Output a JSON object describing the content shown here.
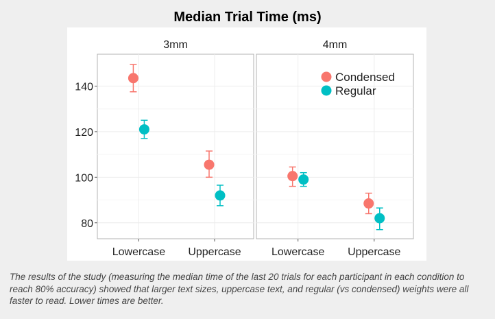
{
  "chart_data": {
    "type": "scatter",
    "title": "Median Trial Time (ms)",
    "facets": [
      "3mm",
      "4mm"
    ],
    "categories": [
      "Lowercase",
      "Uppercase"
    ],
    "ylim": [
      73,
      154
    ],
    "yticks": [
      80,
      100,
      120,
      140
    ],
    "grid": true,
    "legend_position": "top-right",
    "series": [
      {
        "name": "Condensed",
        "color": "#f8766d",
        "points": [
          {
            "facet": "3mm",
            "category": "Lowercase",
            "y": 143.5,
            "low": 137.5,
            "high": 149.5
          },
          {
            "facet": "3mm",
            "category": "Uppercase",
            "y": 105.5,
            "low": 100,
            "high": 111.5
          },
          {
            "facet": "4mm",
            "category": "Lowercase",
            "y": 100.5,
            "low": 96,
            "high": 104.5
          },
          {
            "facet": "4mm",
            "category": "Uppercase",
            "y": 88.5,
            "low": 84,
            "high": 93
          }
        ]
      },
      {
        "name": "Regular",
        "color": "#00bfc4",
        "points": [
          {
            "facet": "3mm",
            "category": "Lowercase",
            "y": 121,
            "low": 117,
            "high": 125
          },
          {
            "facet": "3mm",
            "category": "Uppercase",
            "y": 92,
            "low": 87.5,
            "high": 96.5
          },
          {
            "facet": "4mm",
            "category": "Lowercase",
            "y": 99,
            "low": 96,
            "high": 102
          },
          {
            "facet": "4mm",
            "category": "Uppercase",
            "y": 82,
            "low": 77,
            "high": 86.5
          }
        ]
      }
    ]
  },
  "caption": "The results of the study (measuring the median time of the last 20 trials for each participant in each condition to reach 80% accuracy) showed that larger text sizes, uppercase text, and regular (vs condensed) weights were all faster to read. Lower times are better."
}
